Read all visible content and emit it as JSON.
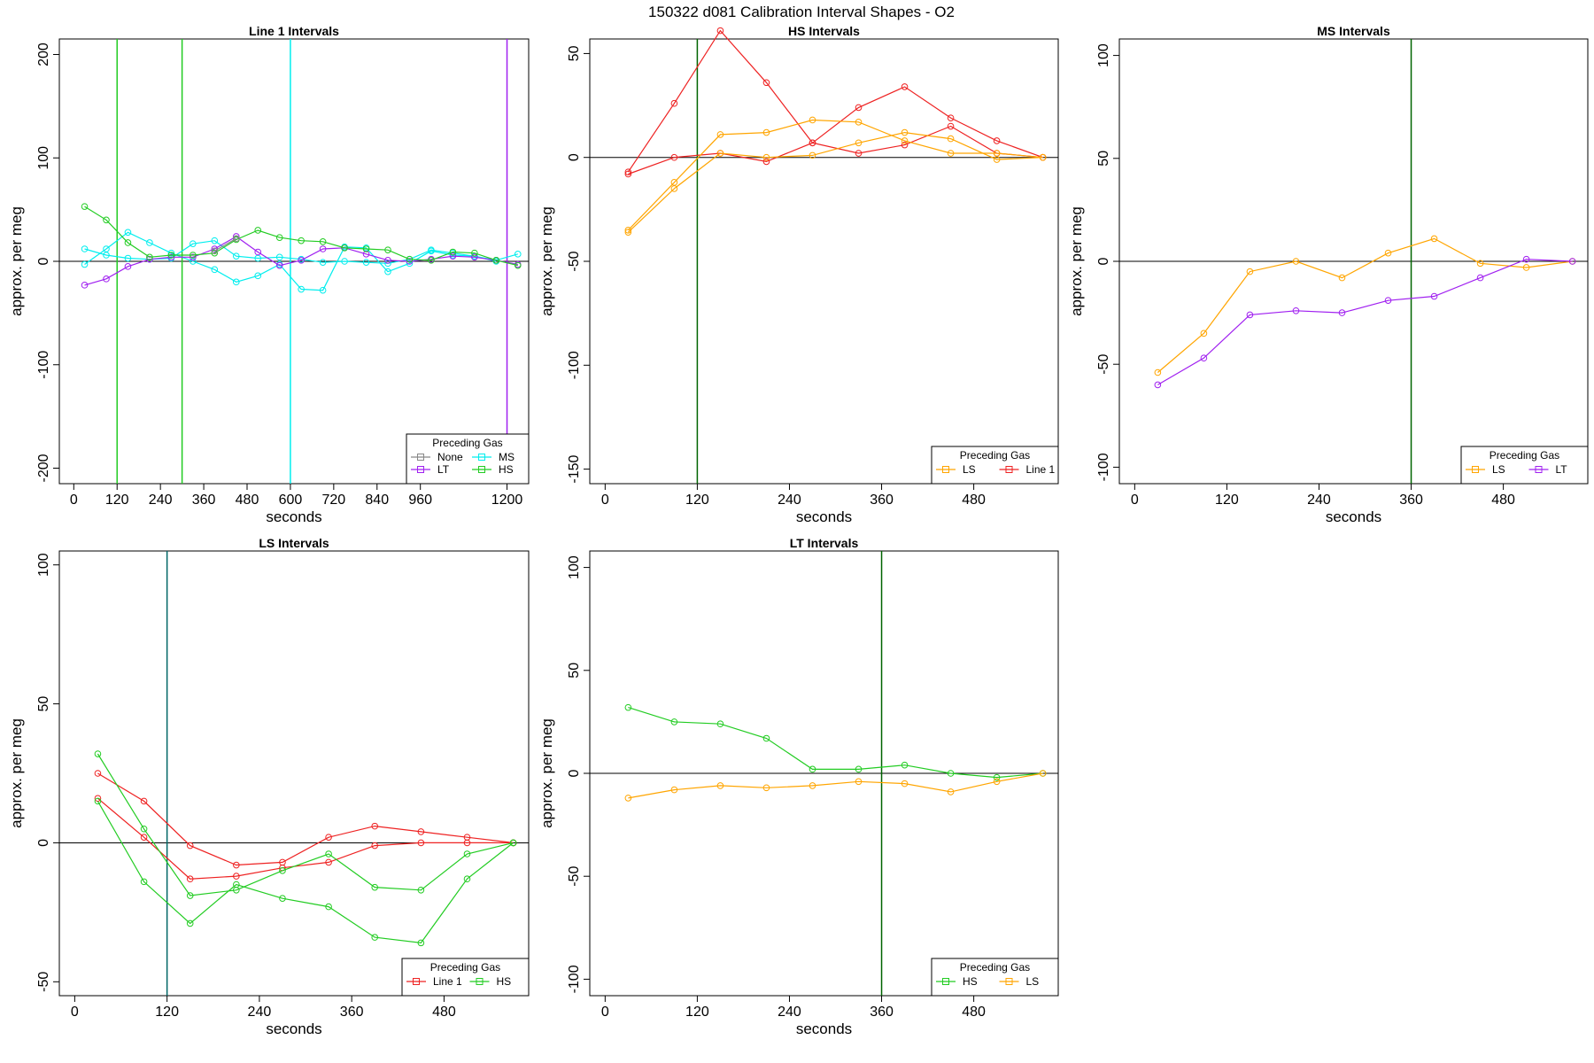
{
  "suptitle": "150322   d081   Calibration Interval Shapes - O2",
  "chart_data": [
    {
      "type": "line",
      "title": "Line 1 Intervals",
      "xlabel": "seconds",
      "ylabel": "approx. per meg",
      "xlim": [
        -40,
        1260
      ],
      "ylim": [
        -215,
        215
      ],
      "xticks": [
        0,
        120,
        240,
        360,
        480,
        600,
        720,
        840,
        960,
        1200
      ],
      "yticks": [
        -200,
        -100,
        0,
        100,
        200
      ],
      "hline": 0,
      "vlines": [
        {
          "x": 120,
          "color": "#22cc22"
        },
        {
          "x": 300,
          "color": "#22cc22"
        },
        {
          "x": 600,
          "color": "#00eeee"
        },
        {
          "x": 1200,
          "color": "#a020f0"
        }
      ],
      "legend": {
        "title": "Preceding Gas",
        "position": "bottom-right",
        "columns": 2,
        "entries": [
          {
            "label": "None",
            "color": "#888888"
          },
          {
            "label": "MS",
            "color": "#00eeee"
          },
          {
            "label": "LT",
            "color": "#a020f0"
          },
          {
            "label": "HS",
            "color": "#22cc22"
          }
        ]
      },
      "series": [
        {
          "name": "MS-a",
          "color": "#00eeee",
          "x": [
            30,
            90,
            150,
            210,
            270,
            330,
            390,
            450,
            510,
            570,
            630,
            690,
            750,
            810,
            870,
            930,
            990,
            1050,
            1110,
            1170,
            1230
          ],
          "y": [
            12,
            6,
            3,
            2,
            3,
            17,
            20,
            5,
            3,
            4,
            2,
            -1,
            0,
            -1,
            -2,
            2,
            11,
            8,
            5,
            1,
            7
          ]
        },
        {
          "name": "MS-b",
          "color": "#00eeee",
          "x": [
            30,
            90,
            150,
            210,
            270,
            330,
            390,
            450,
            510,
            570,
            630,
            690,
            750,
            810,
            870,
            930,
            990,
            1050,
            1110,
            1170
          ],
          "y": [
            -3,
            12,
            28,
            18,
            8,
            0,
            -8,
            -20,
            -14,
            -3,
            -27,
            -28,
            14,
            13,
            -10,
            -2,
            10,
            6,
            5,
            0
          ]
        },
        {
          "name": "LT",
          "color": "#a020f0",
          "x": [
            30,
            90,
            150,
            210,
            270,
            330,
            390,
            450,
            510,
            570,
            630,
            690,
            750,
            810,
            870,
            930,
            990,
            1050,
            1110,
            1170,
            1230
          ],
          "y": [
            -23,
            -17,
            -5,
            2,
            4,
            4,
            12,
            24,
            9,
            -4,
            1,
            12,
            13,
            7,
            1,
            0,
            2,
            5,
            4,
            1,
            -3
          ]
        },
        {
          "name": "HS",
          "color": "#22cc22",
          "x": [
            30,
            90,
            150,
            210,
            270,
            330,
            390,
            450,
            510,
            570,
            630,
            690,
            750,
            810,
            870,
            930,
            990,
            1050,
            1110,
            1170,
            1230
          ],
          "y": [
            53,
            40,
            18,
            4,
            6,
            6,
            8,
            21,
            30,
            23,
            20,
            19,
            13,
            12,
            11,
            2,
            1,
            9,
            8,
            1,
            -4
          ]
        },
        {
          "name": "None",
          "color": "#888888",
          "x": [
            390,
            450
          ],
          "y": [
            10,
            22
          ]
        }
      ]
    },
    {
      "type": "line",
      "title": "HS Intervals",
      "xlabel": "seconds",
      "ylabel": "approx. per meg",
      "xlim": [
        -20,
        590
      ],
      "ylim": [
        -157,
        57
      ],
      "xticks": [
        0,
        120,
        240,
        360,
        480
      ],
      "yticks": [
        -150,
        -100,
        -50,
        0,
        50
      ],
      "hline": 0,
      "vlines": [
        {
          "x": 120,
          "color": "#006400"
        }
      ],
      "legend": {
        "title": "Preceding Gas",
        "position": "bottom-right",
        "columns": 2,
        "entries": [
          {
            "label": "LS",
            "color": "#ffa500"
          },
          {
            "label": "Line 1",
            "color": "#ee2222"
          }
        ]
      },
      "series": [
        {
          "name": "Line 1-a",
          "color": "#ee2222",
          "x": [
            30,
            90,
            150,
            210,
            270,
            330,
            390,
            450,
            510,
            570
          ],
          "y": [
            -7,
            26,
            61,
            36,
            7,
            24,
            34,
            19,
            8,
            0
          ]
        },
        {
          "name": "Line 1-b",
          "color": "#ee2222",
          "x": [
            30,
            90,
            150,
            210,
            270,
            330,
            390,
            450,
            510,
            570
          ],
          "y": [
            -8,
            0,
            2,
            -2,
            7,
            2,
            6,
            15,
            2,
            0
          ]
        },
        {
          "name": "LS-a",
          "color": "#ffa500",
          "x": [
            30,
            90,
            150,
            210,
            270,
            330,
            390,
            450,
            510,
            570
          ],
          "y": [
            -35,
            -12,
            11,
            12,
            18,
            17,
            8,
            2,
            2,
            0
          ]
        },
        {
          "name": "LS-b",
          "color": "#ffa500",
          "x": [
            30,
            90,
            150,
            210,
            270,
            330,
            390,
            450,
            510,
            570
          ],
          "y": [
            -36,
            -15,
            2,
            0,
            1,
            7,
            12,
            9,
            -1,
            0
          ]
        }
      ]
    },
    {
      "type": "line",
      "title": "MS Intervals",
      "xlabel": "seconds",
      "ylabel": "approx. per meg",
      "xlim": [
        -20,
        590
      ],
      "ylim": [
        -108,
        108
      ],
      "xticks": [
        0,
        120,
        240,
        360,
        480
      ],
      "yticks": [
        -100,
        -50,
        0,
        50,
        100
      ],
      "hline": 0,
      "vlines": [
        {
          "x": 360,
          "color": "#006400"
        }
      ],
      "legend": {
        "title": "Preceding Gas",
        "position": "bottom-right",
        "columns": 2,
        "entries": [
          {
            "label": "LS",
            "color": "#ffa500"
          },
          {
            "label": "LT",
            "color": "#a020f0"
          }
        ]
      },
      "series": [
        {
          "name": "LS",
          "color": "#ffa500",
          "x": [
            30,
            90,
            150,
            210,
            270,
            330,
            390,
            450,
            510,
            570
          ],
          "y": [
            -54,
            -35,
            -5,
            0,
            -8,
            4,
            11,
            -1,
            -3,
            0
          ]
        },
        {
          "name": "LT",
          "color": "#a020f0",
          "x": [
            30,
            90,
            150,
            210,
            270,
            330,
            390,
            450,
            510,
            570
          ],
          "y": [
            -60,
            -47,
            -26,
            -24,
            -25,
            -19,
            -17,
            -8,
            1,
            0
          ]
        }
      ]
    },
    {
      "type": "line",
      "title": "LS Intervals",
      "xlabel": "seconds",
      "ylabel": "approx. per meg",
      "xlim": [
        -20,
        590
      ],
      "ylim": [
        -55,
        105
      ],
      "xticks": [
        0,
        120,
        240,
        360,
        480
      ],
      "yticks": [
        -50,
        0,
        50,
        100
      ],
      "hline": 0,
      "vlines": [
        {
          "x": 120,
          "color": "#006666"
        }
      ],
      "legend": {
        "title": "Preceding Gas",
        "position": "bottom-right",
        "columns": 2,
        "entries": [
          {
            "label": "Line 1",
            "color": "#ee2222"
          },
          {
            "label": "HS",
            "color": "#22cc22"
          }
        ]
      },
      "series": [
        {
          "name": "Line 1-a",
          "color": "#ee2222",
          "x": [
            30,
            90,
            150,
            210,
            270,
            330,
            390,
            450,
            510,
            570
          ],
          "y": [
            25,
            15,
            -1,
            -8,
            -7,
            2,
            6,
            4,
            2,
            0
          ]
        },
        {
          "name": "Line 1-b",
          "color": "#ee2222",
          "x": [
            30,
            90,
            150,
            210,
            270,
            330,
            390,
            450,
            510,
            570
          ],
          "y": [
            16,
            2,
            -13,
            -12,
            -9,
            -7,
            -1,
            0,
            0,
            0
          ]
        },
        {
          "name": "HS-a",
          "color": "#22cc22",
          "x": [
            30,
            90,
            150,
            210,
            270,
            330,
            390,
            450,
            510,
            570
          ],
          "y": [
            32,
            5,
            -19,
            -17,
            -10,
            -4,
            -16,
            -17,
            -4,
            0
          ]
        },
        {
          "name": "HS-b",
          "color": "#22cc22",
          "x": [
            30,
            90,
            150,
            210,
            270,
            330,
            390,
            450,
            510,
            570
          ],
          "y": [
            15,
            -14,
            -29,
            -15,
            -20,
            -23,
            -34,
            -36,
            -13,
            0
          ]
        }
      ]
    },
    {
      "type": "line",
      "title": "LT Intervals",
      "xlabel": "seconds",
      "ylabel": "approx. per meg",
      "xlim": [
        -20,
        590
      ],
      "ylim": [
        -108,
        108
      ],
      "xticks": [
        0,
        120,
        240,
        360,
        480
      ],
      "yticks": [
        -100,
        -50,
        0,
        50,
        100
      ],
      "hline": 0,
      "vlines": [
        {
          "x": 360,
          "color": "#006400"
        }
      ],
      "legend": {
        "title": "Preceding Gas",
        "position": "bottom-right",
        "columns": 2,
        "entries": [
          {
            "label": "HS",
            "color": "#22cc22"
          },
          {
            "label": "LS",
            "color": "#ffa500"
          }
        ]
      },
      "series": [
        {
          "name": "HS",
          "color": "#22cc22",
          "x": [
            30,
            90,
            150,
            210,
            270,
            330,
            390,
            450,
            510,
            570
          ],
          "y": [
            32,
            25,
            24,
            17,
            2,
            2,
            4,
            0,
            -2,
            0
          ]
        },
        {
          "name": "LS",
          "color": "#ffa500",
          "x": [
            30,
            90,
            150,
            210,
            270,
            330,
            390,
            450,
            510,
            570
          ],
          "y": [
            -12,
            -8,
            -6,
            -7,
            -6,
            -4,
            -5,
            -9,
            -4,
            0
          ]
        }
      ]
    }
  ]
}
